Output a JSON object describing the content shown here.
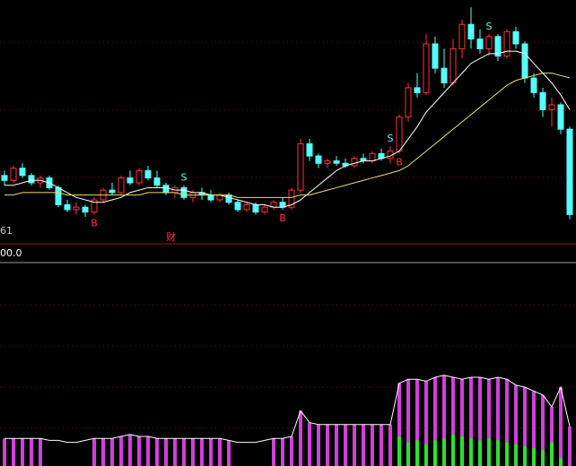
{
  "chart_data": {
    "type": "candlestick",
    "open": [
      28,
      26,
      31,
      28,
      25,
      27,
      23,
      16,
      14,
      15,
      13,
      18,
      22,
      21,
      27,
      25,
      30,
      27,
      24,
      21,
      23,
      19,
      21,
      20,
      18,
      20,
      17,
      14,
      16,
      13,
      15,
      17,
      15,
      22,
      41,
      36,
      33,
      34,
      33,
      32,
      35,
      34,
      37,
      35,
      38,
      52,
      64,
      62,
      82,
      72,
      66,
      80,
      90,
      84,
      80,
      85,
      77,
      87,
      82,
      68,
      62,
      55,
      57,
      47
    ],
    "high": [
      30,
      32,
      33,
      29,
      28,
      28,
      24,
      18,
      17,
      16,
      19,
      23,
      25,
      28,
      30,
      31,
      32,
      30,
      25,
      24,
      24,
      22,
      23,
      22,
      21,
      21,
      18,
      17,
      17,
      16,
      18,
      19,
      23,
      43,
      43,
      37,
      35,
      36,
      35,
      36,
      37,
      38,
      39,
      40,
      53,
      66,
      70,
      86,
      85,
      80,
      84,
      92,
      97,
      88,
      86,
      86,
      88,
      89,
      83,
      70,
      64,
      60,
      58,
      48
    ],
    "low": [
      24,
      25,
      27,
      24,
      23,
      22,
      15,
      13,
      12,
      11,
      12,
      17,
      20,
      20,
      24,
      24,
      26,
      23,
      20,
      19,
      18,
      17,
      18,
      17,
      17,
      16,
      13,
      13,
      12,
      12,
      14,
      14,
      14,
      21,
      34,
      31,
      31,
      32,
      31,
      31,
      33,
      33,
      34,
      33,
      37,
      50,
      60,
      61,
      70,
      64,
      65,
      76,
      80,
      78,
      77,
      75,
      76,
      80,
      66,
      60,
      52,
      48,
      45,
      10
    ],
    "close": [
      26,
      31,
      28,
      25,
      27,
      23,
      16,
      14,
      15,
      13,
      18,
      22,
      21,
      27,
      25,
      30,
      27,
      24,
      21,
      23,
      19,
      21,
      20,
      18,
      20,
      17,
      14,
      16,
      13,
      15,
      17,
      15,
      22,
      41,
      36,
      33,
      34,
      33,
      32,
      35,
      34,
      37,
      35,
      38,
      52,
      64,
      62,
      82,
      72,
      66,
      80,
      90,
      84,
      80,
      85,
      77,
      87,
      82,
      68,
      62,
      55,
      57,
      47,
      12
    ],
    "ma_fast": [
      24,
      24,
      25,
      26,
      26,
      25,
      23,
      21,
      19,
      18,
      17,
      17,
      18,
      19,
      21,
      22,
      23,
      23,
      23,
      22,
      22,
      21,
      21,
      20,
      20,
      19,
      18,
      17,
      16,
      16,
      15,
      15,
      16,
      18,
      21,
      24,
      27,
      30,
      32,
      33,
      34,
      34,
      35,
      36,
      38,
      43,
      48,
      54,
      58,
      62,
      66,
      70,
      74,
      76,
      78,
      78,
      79,
      79,
      78,
      74,
      70,
      66,
      61,
      55
    ],
    "ma_slow": [
      20,
      20,
      21,
      21,
      21,
      21,
      21,
      20,
      20,
      20,
      20,
      20,
      20,
      20,
      20,
      20,
      21,
      21,
      21,
      21,
      20,
      20,
      20,
      20,
      20,
      20,
      19,
      19,
      19,
      19,
      19,
      19,
      19,
      20,
      20,
      21,
      22,
      23,
      24,
      25,
      26,
      27,
      28,
      29,
      30,
      32,
      35,
      38,
      41,
      44,
      47,
      50,
      53,
      56,
      59,
      62,
      65,
      67,
      68,
      69,
      70,
      70,
      69,
      68
    ],
    "ylim": [
      0,
      100
    ],
    "up_color": "#ff3232",
    "down_color": "#54ffff",
    "ma_fast_color": "#ffffff",
    "ma_slow_color": "#e8e070",
    "signals": [
      {
        "label": "B",
        "index": 10,
        "color": "#ff3232"
      },
      {
        "label": "S",
        "index": 20,
        "color": "#54ffff"
      },
      {
        "label": "B",
        "index": 31,
        "color": "#ff3232"
      },
      {
        "label": "S",
        "index": 43,
        "color": "#54ffff"
      },
      {
        "label": "B",
        "index": 44,
        "color": "#ff3232"
      },
      {
        "label": "S",
        "index": 54,
        "color": "#54ffff"
      }
    ],
    "corner_label": "61",
    "event_label": "财",
    "indicator_label": "00.0",
    "lower": {
      "ylim": [
        0,
        100
      ],
      "line": [
        14,
        14,
        14,
        14,
        14,
        13,
        13,
        12,
        12,
        13,
        14,
        14,
        14,
        15,
        16,
        15,
        15,
        14,
        14,
        14,
        14,
        14,
        14,
        14,
        14,
        13,
        12,
        12,
        12,
        13,
        14,
        14,
        15,
        28,
        22,
        21,
        21,
        21,
        21,
        21,
        21,
        21,
        21,
        21,
        42,
        44,
        44,
        43,
        45,
        46,
        45,
        44,
        45,
        45,
        44,
        45,
        44,
        41,
        40,
        38,
        36,
        30,
        40,
        20
      ],
      "bars": [
        14,
        14,
        14,
        14,
        14,
        0,
        0,
        0,
        0,
        0,
        14,
        14,
        14,
        15,
        16,
        15,
        15,
        14,
        14,
        14,
        14,
        14,
        14,
        14,
        14,
        13,
        0,
        0,
        0,
        0,
        14,
        14,
        15,
        28,
        22,
        21,
        21,
        21,
        21,
        21,
        21,
        21,
        21,
        21,
        42,
        44,
        44,
        43,
        45,
        46,
        45,
        44,
        45,
        45,
        44,
        45,
        44,
        41,
        40,
        38,
        36,
        30,
        40,
        20
      ],
      "green": [
        0,
        0,
        0,
        0,
        0,
        0,
        0,
        0,
        0,
        0,
        0,
        0,
        0,
        0,
        0,
        0,
        0,
        0,
        0,
        0,
        0,
        0,
        0,
        0,
        0,
        0,
        0,
        0,
        0,
        0,
        0,
        0,
        0,
        0,
        0,
        0,
        0,
        0,
        0,
        0,
        0,
        0,
        0,
        0,
        15,
        12,
        13,
        11,
        13,
        14,
        16,
        15,
        14,
        13,
        14,
        13,
        12,
        11,
        10,
        9,
        8,
        12,
        4,
        0
      ],
      "bar_color": "#d040d8",
      "green_color": "#30e030",
      "line_color": "#ffffff"
    }
  }
}
